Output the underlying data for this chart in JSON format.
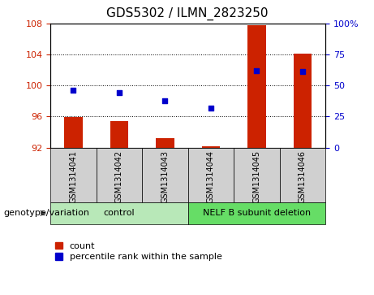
{
  "title": "GDS5302 / ILMN_2823250",
  "samples": [
    "GSM1314041",
    "GSM1314042",
    "GSM1314043",
    "GSM1314044",
    "GSM1314045",
    "GSM1314046"
  ],
  "count_values": [
    95.9,
    95.4,
    93.2,
    92.2,
    107.8,
    104.1
  ],
  "percentile_values": [
    46,
    44,
    38,
    32,
    62,
    61
  ],
  "ylim_left": [
    92,
    108
  ],
  "ylim_right": [
    0,
    100
  ],
  "yticks_left": [
    92,
    96,
    100,
    104,
    108
  ],
  "yticks_right": [
    0,
    25,
    50,
    75,
    100
  ],
  "ytick_labels_right": [
    "0",
    "25",
    "50",
    "75",
    "100%"
  ],
  "bar_color": "#cc2200",
  "dot_color": "#0000cc",
  "bar_bottom": 92,
  "groups": [
    {
      "label": "control",
      "span": [
        0,
        3
      ],
      "color": "#b8e8b8"
    },
    {
      "label": "NELF B subunit deletion",
      "span": [
        3,
        6
      ],
      "color": "#66dd66"
    }
  ],
  "group_row_label": "genotype/variation",
  "legend_count_label": "count",
  "legend_percentile_label": "percentile rank within the sample",
  "tick_label_color_left": "#cc2200",
  "tick_label_color_right": "#0000cc",
  "sample_box_color": "#d0d0d0",
  "title_fontsize": 11
}
